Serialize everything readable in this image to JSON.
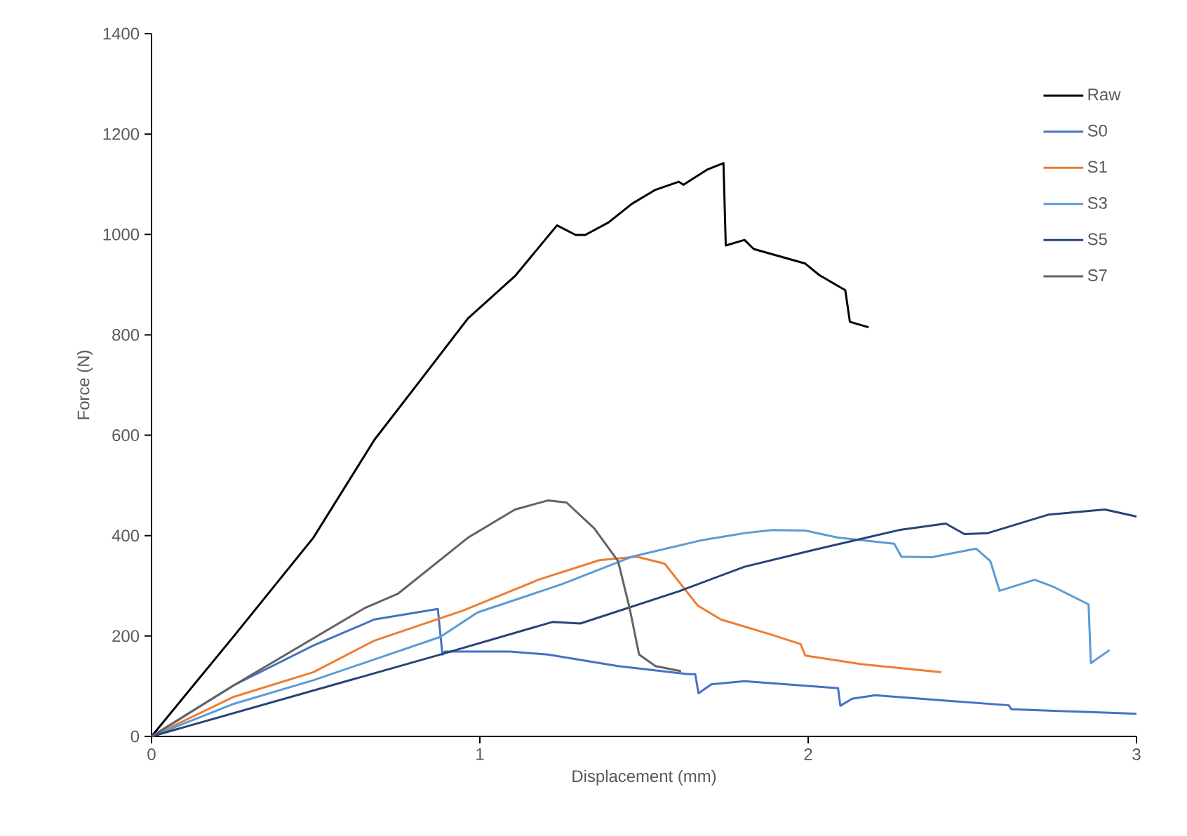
{
  "chart_data": {
    "type": "line",
    "xlabel": "Displacement (mm)",
    "ylabel": "Force (N)",
    "xlim": [
      0,
      3
    ],
    "ylim": [
      0,
      1400
    ],
    "xticks": [
      0,
      1,
      2,
      3
    ],
    "yticks": [
      0,
      200,
      400,
      600,
      800,
      1000,
      1200,
      1400
    ],
    "grid": false,
    "legend": "right",
    "marker": "none",
    "line_style": "solid",
    "series": [
      {
        "name": "Raw",
        "color": "#000000",
        "x": [
          0,
          0.251,
          0.493,
          0.679,
          0.822,
          0.964,
          1.107,
          1.235,
          1.292,
          1.321,
          1.392,
          1.463,
          1.535,
          1.606,
          1.62,
          1.692,
          1.742,
          1.749,
          1.806,
          1.834,
          1.991,
          2.034,
          2.113,
          2.127,
          2.184
        ],
        "values": [
          0,
          200,
          396,
          591,
          712,
          833,
          917,
          1018,
          999,
          999,
          1024,
          1061,
          1089,
          1105,
          1099,
          1129,
          1142,
          978,
          989,
          971,
          942,
          919,
          889,
          826,
          815
        ]
      },
      {
        "name": "S0",
        "color": "#4472c4",
        "x": [
          0,
          0.251,
          0.493,
          0.679,
          0.872,
          0.886,
          0.893,
          1.092,
          1.207,
          1.421,
          1.635,
          1.656,
          1.666,
          1.706,
          1.806,
          2.091,
          2.098,
          2.134,
          2.205,
          2.405,
          2.611,
          2.619,
          2.747,
          2.918,
          3.0
        ],
        "values": [
          0,
          102,
          181,
          233,
          254,
          163,
          169,
          169,
          163,
          140,
          124,
          124,
          86,
          104,
          110,
          96,
          61,
          75,
          82,
          72,
          62,
          54,
          51,
          47,
          45
        ]
      },
      {
        "name": "S1",
        "color": "#ed7d31",
        "x": [
          0,
          0.251,
          0.493,
          0.679,
          0.95,
          1.178,
          1.364,
          1.478,
          1.563,
          1.663,
          1.734,
          1.891,
          1.977,
          1.991,
          2.162,
          2.405
        ],
        "values": [
          0,
          79,
          128,
          191,
          251,
          312,
          351,
          358,
          344,
          261,
          233,
          202,
          184,
          161,
          144,
          128
        ]
      },
      {
        "name": "S3",
        "color": "#5b9bd5",
        "x": [
          0,
          0.251,
          0.493,
          0.879,
          0.993,
          1.249,
          1.463,
          1.677,
          1.806,
          1.891,
          1.991,
          2.091,
          2.262,
          2.284,
          2.376,
          2.512,
          2.555,
          2.583,
          2.69,
          2.747,
          2.854,
          2.861,
          2.918
        ],
        "values": [
          0,
          65,
          112,
          198,
          247,
          303,
          358,
          391,
          405,
          411,
          410,
          396,
          384,
          358,
          357,
          374,
          349,
          290,
          312,
          298,
          263,
          146,
          172
        ]
      },
      {
        "name": "S5",
        "color": "#264478",
        "x": [
          0,
          0.879,
          1.221,
          1.306,
          1.606,
          1.806,
          2.02,
          2.276,
          2.419,
          2.476,
          2.547,
          2.733,
          2.904,
          3.0
        ],
        "values": [
          0,
          163,
          228,
          225,
          289,
          338,
          372,
          411,
          424,
          403,
          405,
          442,
          452,
          438
        ]
      },
      {
        "name": "S7",
        "color": "#636363",
        "x": [
          0,
          0.251,
          0.65,
          0.75,
          0.964,
          1.107,
          1.207,
          1.264,
          1.349,
          1.421,
          1.456,
          1.485,
          1.535,
          1.613
        ],
        "values": [
          0,
          102,
          256,
          284,
          396,
          452,
          470,
          466,
          414,
          349,
          256,
          163,
          140,
          130
        ]
      }
    ]
  }
}
